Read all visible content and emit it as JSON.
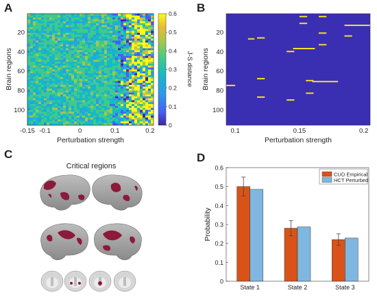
{
  "panels": {
    "a": "A",
    "b": "B",
    "c": "C",
    "d": "D"
  },
  "panel_c": {
    "title": "Critical regions"
  },
  "colors": {
    "state_blue": "#3a2fb2",
    "state_yellow": "#f2e127",
    "empirical": "#d95319",
    "perturbed": "#7fb7e0"
  },
  "chart_data": [
    {
      "type": "heatmap",
      "panel": "A",
      "xlabel": "Perturbation strength",
      "ylabel": "Brain regions",
      "x_ticks": [
        "-0.15",
        "-0.1",
        "0",
        "0.1",
        "0.2"
      ],
      "y_ticks": [
        "20",
        "40",
        "60",
        "80",
        "100"
      ],
      "xlim": [
        -0.15,
        0.21
      ],
      "ylim": [
        1,
        116
      ],
      "colorbar": {
        "label": "J-S distance",
        "ticks": [
          "0",
          "0.1",
          "0.2",
          "0.3",
          "0.4",
          "0.5",
          "0.6"
        ],
        "range": [
          0,
          0.6
        ]
      },
      "description_values": {
        "low_strength_level": 0.3,
        "transition_strength": 0.1,
        "high_strength_level": 0.6
      }
    },
    {
      "type": "heatmap",
      "panel": "B",
      "xlabel": "Perturbation strength",
      "ylabel": "Brain regions",
      "x_ticks": [
        "0.1",
        "0.15",
        "0.2"
      ],
      "y_ticks": [
        "20",
        "40",
        "60",
        "80",
        "100"
      ],
      "xlim": [
        0.093,
        0.205
      ],
      "ylim": [
        1,
        116
      ],
      "segments": [
        {
          "region": 4,
          "x0": 0.15,
          "x1": 0.156
        },
        {
          "region": 4,
          "x0": 0.165,
          "x1": 0.171
        },
        {
          "region": 11,
          "x0": 0.15,
          "x1": 0.156
        },
        {
          "region": 13,
          "x0": 0.185,
          "x1": 0.205
        },
        {
          "region": 21,
          "x0": 0.165,
          "x1": 0.171
        },
        {
          "region": 24,
          "x0": 0.185,
          "x1": 0.191
        },
        {
          "region": 26,
          "x0": 0.117,
          "x1": 0.123
        },
        {
          "region": 27,
          "x0": 0.11,
          "x1": 0.115
        },
        {
          "region": 33,
          "x0": 0.165,
          "x1": 0.171
        },
        {
          "region": 37,
          "x0": 0.145,
          "x1": 0.162
        },
        {
          "region": 40,
          "x0": 0.14,
          "x1": 0.146
        },
        {
          "region": 68,
          "x0": 0.117,
          "x1": 0.123
        },
        {
          "region": 70,
          "x0": 0.155,
          "x1": 0.161
        },
        {
          "region": 71,
          "x0": 0.16,
          "x1": 0.18
        },
        {
          "region": 75,
          "x0": 0.093,
          "x1": 0.1
        },
        {
          "region": 83,
          "x0": 0.155,
          "x1": 0.161
        },
        {
          "region": 87,
          "x0": 0.117,
          "x1": 0.123
        },
        {
          "region": 90,
          "x0": 0.14,
          "x1": 0.146
        }
      ]
    },
    {
      "type": "bar",
      "panel": "D",
      "categories": [
        "State 1",
        "State 2",
        "State 3"
      ],
      "series": [
        {
          "name": "CUD Empirical",
          "values": [
            0.5,
            0.28,
            0.22
          ],
          "errors": [
            0.05,
            0.04,
            0.03
          ]
        },
        {
          "name": "HCT Perturbed",
          "values": [
            0.485,
            0.287,
            0.228
          ]
        }
      ],
      "ylabel": "Probability",
      "xlabel": "",
      "ylim": [
        0,
        0.6
      ],
      "y_ticks": [
        "0",
        "0.1",
        "0.2",
        "0.3",
        "0.4",
        "0.5",
        "0.6"
      ],
      "legend": "top-right"
    }
  ]
}
